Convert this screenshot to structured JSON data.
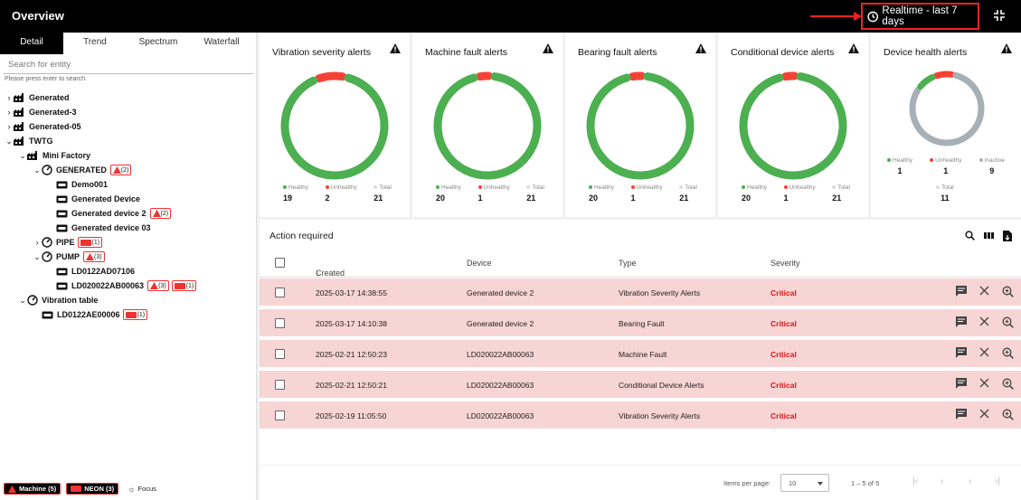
{
  "header": {
    "title": "Overview",
    "realtime_label": "Realtime - last 7 days"
  },
  "tabs": [
    {
      "label": "Detail"
    },
    {
      "label": "Trend"
    },
    {
      "label": "Spectrum"
    },
    {
      "label": "Waterfall"
    }
  ],
  "search": {
    "placeholder": "Search for entity",
    "hint": "Please press enter to search."
  },
  "tree": [
    {
      "label": "Generated",
      "badge": ""
    },
    {
      "label": "Generated-3",
      "badge": ""
    },
    {
      "label": "Generated-05",
      "badge": ""
    },
    {
      "label": "TWTG",
      "badge": ""
    },
    {
      "label": "Mini Factory",
      "badge": ""
    },
    {
      "label": "GENERATED",
      "badge": "(2)"
    },
    {
      "label": "Demo001",
      "badge": ""
    },
    {
      "label": "Generated Device",
      "badge": ""
    },
    {
      "label": "Generated device 2",
      "badge": "(2)"
    },
    {
      "label": "Generated device 03",
      "badge": ""
    },
    {
      "label": "PIPE",
      "badge": "(1)"
    },
    {
      "label": "PUMP",
      "badge": "(3)"
    },
    {
      "label": "LD0122AD07106",
      "badge": ""
    },
    {
      "label": "LD020022AB00063",
      "badge": "(3)",
      "badge2": "(1)"
    },
    {
      "label": "Vibration table",
      "badge": ""
    },
    {
      "label": "LD0122AE00006",
      "badge": "(1)"
    }
  ],
  "legend": {
    "machine": "Machine (5)",
    "neon": "NEON (3)",
    "focus": "Focus"
  },
  "cards": [
    {
      "title": "Vibration severity alerts",
      "labels": [
        "Healthy",
        "Unhealthy",
        "Total"
      ],
      "values": [
        "19",
        "2",
        "21"
      ],
      "healthy": 19,
      "unhealthy": 2,
      "inactive": 0
    },
    {
      "title": "Machine fault alerts",
      "labels": [
        "Healthy",
        "Unhealthy",
        "Total"
      ],
      "values": [
        "20",
        "1",
        "21"
      ],
      "healthy": 20,
      "unhealthy": 1,
      "inactive": 0
    },
    {
      "title": "Bearing fault alerts",
      "labels": [
        "Healthy",
        "Unhealthy",
        "Total"
      ],
      "values": [
        "20",
        "1",
        "21"
      ],
      "healthy": 20,
      "unhealthy": 1,
      "inactive": 0
    },
    {
      "title": "Conditional device alerts",
      "labels": [
        "Healthy",
        "Unhealthy",
        "Total"
      ],
      "values": [
        "20",
        "1",
        "21"
      ],
      "healthy": 20,
      "unhealthy": 1,
      "inactive": 0
    },
    {
      "title": "Device health alerts",
      "labels": [
        "Healthy",
        "Unhealthy",
        "Inactive",
        "Total"
      ],
      "values": [
        "1",
        "1",
        "9",
        "11"
      ],
      "healthy": 1,
      "unhealthy": 1,
      "inactive": 9
    }
  ],
  "colors": {
    "healthy": "#4caf50",
    "unhealthy": "#f44336",
    "inactive": "#a7b0b5",
    "total": "#cccccc"
  },
  "action": {
    "title": "Action required",
    "columns": [
      "Created time",
      "Device",
      "Type",
      "Severity"
    ],
    "rows": [
      {
        "time": "2025-03-17 14:38:55",
        "device": "Generated device 2",
        "type": "Vibration Severity Alerts",
        "severity": "Critical"
      },
      {
        "time": "2025-03-17 14:10:38",
        "device": "Generated device 2",
        "type": "Bearing Fault",
        "severity": "Critical"
      },
      {
        "time": "2025-02-21 12:50:23",
        "device": "LD020022AB00063",
        "type": "Machine Fault",
        "severity": "Critical"
      },
      {
        "time": "2025-02-21 12:50:21",
        "device": "LD020022AB00063",
        "type": "Conditional Device Alerts",
        "severity": "Critical"
      },
      {
        "time": "2025-02-19 11:05:50",
        "device": "LD020022AB00063",
        "type": "Vibration Severity Alerts",
        "severity": "Critical"
      }
    ]
  },
  "pager": {
    "items_label": "Items per page:",
    "page_size": "10",
    "range": "1 – 5 of 5"
  }
}
